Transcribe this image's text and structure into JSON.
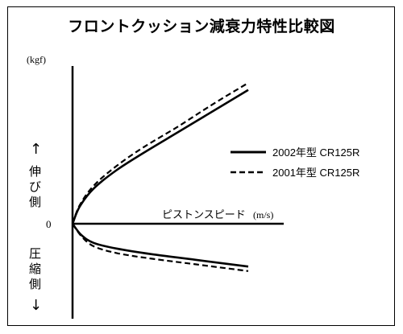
{
  "chart_data": {
    "type": "line",
    "title": "フロントクッション減衰力特性比較図",
    "y_unit_label": "(kgf)",
    "x_axis_label": "ピストンスピード",
    "x_unit_label": "(m/s)",
    "zero_label": "0",
    "upper_side_label": [
      "伸",
      "び",
      "側"
    ],
    "lower_side_label": [
      "圧",
      "縮",
      "側"
    ],
    "upper_arrow": "↑",
    "lower_arrow": "↓",
    "grid": false,
    "legend_position": "right",
    "series": [
      {
        "name": "2002年型 CR125R",
        "style": "solid",
        "color": "#000000",
        "extension_points": [
          [
            0,
            0
          ],
          [
            0.04,
            0.12
          ],
          [
            0.12,
            0.25
          ],
          [
            0.25,
            0.38
          ],
          [
            0.4,
            0.5
          ],
          [
            0.6,
            0.65
          ],
          [
            0.8,
            0.8
          ],
          [
            1.0,
            0.95
          ]
        ],
        "compression_points": [
          [
            0,
            0
          ],
          [
            0.05,
            -0.1
          ],
          [
            0.12,
            -0.17
          ],
          [
            0.25,
            -0.22
          ],
          [
            0.45,
            -0.27
          ],
          [
            0.7,
            -0.32
          ],
          [
            1.0,
            -0.38
          ]
        ]
      },
      {
        "name": "2001年型 CR125R",
        "style": "dashed",
        "color": "#000000",
        "extension_points": [
          [
            0,
            0
          ],
          [
            0.04,
            0.13
          ],
          [
            0.12,
            0.27
          ],
          [
            0.25,
            0.41
          ],
          [
            0.4,
            0.54
          ],
          [
            0.6,
            0.69
          ],
          [
            0.8,
            0.85
          ],
          [
            1.0,
            1.0
          ]
        ],
        "compression_points": [
          [
            0,
            0
          ],
          [
            0.05,
            -0.11
          ],
          [
            0.12,
            -0.2
          ],
          [
            0.25,
            -0.26
          ],
          [
            0.45,
            -0.31
          ],
          [
            0.7,
            -0.36
          ],
          [
            1.0,
            -0.42
          ]
        ]
      }
    ]
  }
}
